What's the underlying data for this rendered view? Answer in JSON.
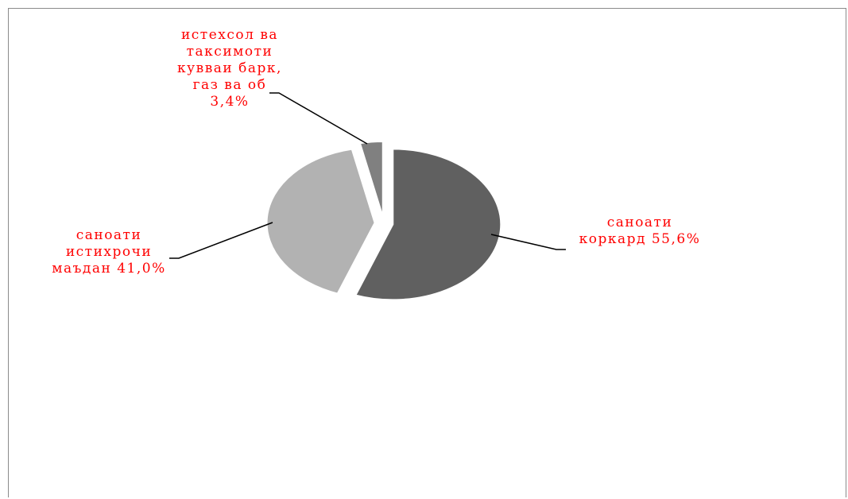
{
  "chart_data": {
    "type": "pie",
    "slices": [
      {
        "lines": [
          "саноати",
          "коркард 55,6%"
        ],
        "value": 55.6,
        "color": "#606060"
      },
      {
        "lines": [
          "саноати",
          "истихрочи",
          "маъдан 41,0%"
        ],
        "value": 41.0,
        "color": "#b2b2b2"
      },
      {
        "lines": [
          "истехсол ва",
          "таксимоти",
          "кувваи барк,",
          "газ ва об",
          "3,4%"
        ],
        "value": 3.4,
        "color": "#808080"
      }
    ],
    "label_color": "#ff0000",
    "explode": "all slices slightly exploded",
    "legend": "none"
  }
}
